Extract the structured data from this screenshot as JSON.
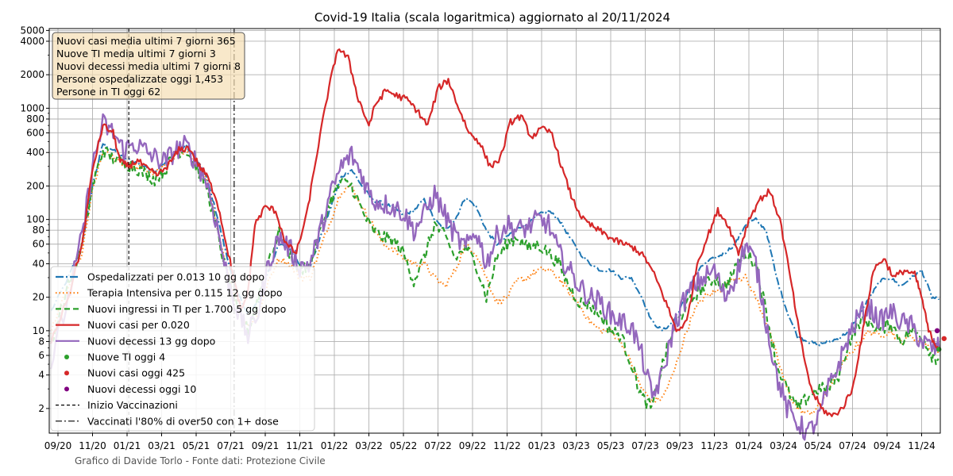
{
  "chart_data": {
    "type": "line",
    "title": "Covid-19 Italia (scala logaritmica) aggiornato al 20/11/2024",
    "scale": "log",
    "ylim": [
      1.2,
      5200
    ],
    "grid": true,
    "x_tick_labels": [
      "09/20",
      "11/20",
      "01/21",
      "03/21",
      "05/21",
      "07/21",
      "09/21",
      "11/21",
      "01/22",
      "03/22",
      "05/22",
      "07/22",
      "09/22",
      "11/22",
      "01/23",
      "03/23",
      "05/23",
      "07/23",
      "09/23",
      "11/23",
      "01/24",
      "03/24",
      "05/24",
      "07/24",
      "09/24",
      "11/24"
    ],
    "y_ticks": [
      {
        "value": 2,
        "label": "2"
      },
      {
        "value": 4,
        "label": "4"
      },
      {
        "value": 6,
        "label": "6"
      },
      {
        "value": 8,
        "label": "8"
      },
      {
        "value": 10,
        "label": "10"
      },
      {
        "value": 20,
        "label": "20"
      },
      {
        "value": 40,
        "label": "40"
      },
      {
        "value": 60,
        "label": "60"
      },
      {
        "value": 80,
        "label": "80"
      },
      {
        "value": 100,
        "label": "100"
      },
      {
        "value": 200,
        "label": "200"
      },
      {
        "value": 400,
        "label": "400"
      },
      {
        "value": 600,
        "label": "600"
      },
      {
        "value": 800,
        "label": "800"
      },
      {
        "value": 1000,
        "label": "1000"
      },
      {
        "value": 2000,
        "label": "2000"
      },
      {
        "value": 4000,
        "label": "4000"
      },
      {
        "value": 5000,
        "label": "5000"
      }
    ],
    "x_range": [
      -0.2,
      25.6
    ],
    "vertical_lines": [
      {
        "x": 2.05,
        "style": "dashed"
      },
      {
        "x": 5.1,
        "style": "dashdot"
      }
    ],
    "info_box": [
      "Nuovi casi media ultimi 7 giorni 365",
      "Nuove TI media ultimi 7 giorni 3",
      "Nuovi decessi media ultimi 7 giorni 8",
      "Persone ospedalizzate oggi 1,453",
      "Persone in TI oggi 62"
    ],
    "legend": [
      {
        "label": "Ospedalizzati per 0.013 10 gg dopo",
        "color": "#1f77b4",
        "kind": "line",
        "dash": "10 3 2 3"
      },
      {
        "label": "Terapia Intensiva per 0.115 12 gg dopo",
        "color": "#ff7f0e",
        "kind": "line",
        "dash": "1.5 3"
      },
      {
        "label": "Nuovi ingressi in TI per 1.700 5 gg dopo",
        "color": "#2ca02c",
        "kind": "line",
        "dash": "7 4"
      },
      {
        "label": "Nuovi casi per 0.020",
        "color": "#d62728",
        "kind": "line",
        "dash": ""
      },
      {
        "label": "Nuovi decessi 13 gg dopo",
        "color": "#9467bd",
        "kind": "line",
        "dash": ""
      },
      {
        "label": "Nuove TI oggi 4",
        "color": "#2ca02c",
        "kind": "dot"
      },
      {
        "label": "Nuovi casi oggi 425",
        "color": "#d62728",
        "kind": "dot"
      },
      {
        "label": "Nuovi decessi oggi 10",
        "color": "#800080",
        "kind": "dot"
      },
      {
        "label": "Inizio Vaccinazioni",
        "color": "#000000",
        "kind": "line",
        "dash": "4 3"
      },
      {
        "label": "Vaccinati l'80% di over50 con 1+ dose",
        "color": "#000000",
        "kind": "line",
        "dash": "8 3 2 3"
      }
    ],
    "series": [
      {
        "name": "Nuovi casi per 0.020",
        "color": "#d62728",
        "width": 2.2,
        "dash": "",
        "jitter": 0.03,
        "x": [
          -0.2,
          0.3,
          0.7,
          1.0,
          1.3,
          1.6,
          1.8,
          2.05,
          2.3,
          2.6,
          2.9,
          3.2,
          3.5,
          3.8,
          4.1,
          4.3,
          4.6,
          4.9,
          5.1,
          5.3,
          5.5,
          5.7,
          6.0,
          6.3,
          6.6,
          6.9,
          7.2,
          7.5,
          7.8,
          8.1,
          8.4,
          8.7,
          9.0,
          9.2,
          9.5,
          9.8,
          10.1,
          10.4,
          10.7,
          11.0,
          11.3,
          11.6,
          11.9,
          12.2,
          12.5,
          12.8,
          13.1,
          13.4,
          13.7,
          14.0,
          14.3,
          14.6,
          14.9,
          15.2,
          15.5,
          15.8,
          16.1,
          16.4,
          16.7,
          17.0,
          17.3,
          17.6,
          17.9,
          18.2,
          18.5,
          18.8,
          19.1,
          19.4,
          19.7,
          20.0,
          20.3,
          20.6,
          20.9,
          21.2,
          21.5,
          21.8,
          22.1,
          22.4,
          22.7,
          23.0,
          23.3,
          23.6,
          23.9,
          24.2,
          24.5,
          24.8,
          25.0,
          25.2,
          25.4,
          25.5
        ],
        "y": [
          8,
          20,
          60,
          280,
          700,
          600,
          330,
          300,
          340,
          280,
          250,
          310,
          420,
          440,
          300,
          250,
          150,
          55,
          28,
          15,
          22,
          90,
          130,
          120,
          60,
          50,
          110,
          400,
          1300,
          3500,
          2800,
          1200,
          700,
          1100,
          1450,
          1300,
          1200,
          950,
          700,
          1500,
          1800,
          1000,
          600,
          500,
          300,
          350,
          750,
          850,
          550,
          650,
          600,
          280,
          150,
          100,
          85,
          75,
          65,
          60,
          55,
          45,
          30,
          18,
          10,
          12,
          40,
          70,
          120,
          90,
          50,
          100,
          150,
          180,
          100,
          30,
          8,
          3,
          2,
          1.7,
          2,
          3,
          10,
          35,
          45,
          30,
          35,
          32,
          20,
          10,
          7.5,
          7
        ]
      },
      {
        "name": "Ospedalizzati per 0.013 10 gg dopo",
        "color": "#1f77b4",
        "width": 2,
        "dash": "10 3 2 3",
        "jitter": 0.015,
        "x": [
          -0.2,
          0.3,
          0.7,
          1.0,
          1.3,
          1.6,
          1.9,
          2.2,
          2.5,
          2.8,
          3.1,
          3.4,
          3.7,
          4.0,
          4.3,
          4.6,
          4.9,
          5.2,
          5.5,
          5.8,
          6.1,
          6.4,
          6.7,
          7.0,
          7.3,
          7.6,
          7.9,
          8.2,
          8.5,
          8.8,
          9.1,
          9.4,
          9.7,
          10.0,
          10.3,
          10.6,
          10.9,
          11.2,
          11.5,
          11.8,
          12.1,
          12.4,
          12.7,
          13.0,
          13.3,
          13.6,
          13.9,
          14.2,
          14.5,
          14.8,
          15.1,
          15.4,
          15.7,
          16.0,
          16.3,
          16.6,
          16.9,
          17.2,
          17.5,
          17.8,
          18.1,
          18.4,
          18.7,
          19.0,
          19.3,
          19.6,
          19.9,
          20.2,
          20.5,
          20.8,
          21.1,
          21.4,
          21.7,
          22.0,
          22.3,
          22.6,
          22.9,
          23.2,
          23.5,
          23.8,
          24.1,
          24.4,
          24.7,
          25.0,
          25.3,
          25.5
        ],
        "y": [
          15,
          30,
          60,
          200,
          480,
          420,
          360,
          330,
          300,
          270,
          320,
          400,
          460,
          350,
          240,
          110,
          45,
          22,
          14,
          18,
          35,
          60,
          55,
          40,
          38,
          70,
          130,
          240,
          280,
          200,
          150,
          140,
          130,
          110,
          120,
          150,
          100,
          80,
          100,
          160,
          130,
          80,
          60,
          70,
          85,
          90,
          110,
          120,
          100,
          70,
          50,
          40,
          35,
          35,
          30,
          30,
          20,
          12,
          10,
          12,
          18,
          30,
          40,
          45,
          50,
          60,
          90,
          100,
          80,
          30,
          15,
          9,
          8,
          7.5,
          8,
          8.5,
          10,
          14,
          20,
          28,
          30,
          25,
          30,
          35,
          20,
          19
        ]
      },
      {
        "name": "Terapia Intensiva per 0.115 12 gg dopo",
        "color": "#ff7f0e",
        "width": 2,
        "dash": "1.5 3",
        "jitter": 0.03,
        "x": [
          -0.2,
          0.3,
          0.7,
          1.0,
          1.3,
          1.6,
          1.9,
          2.2,
          2.5,
          2.8,
          3.1,
          3.4,
          3.7,
          4.0,
          4.3,
          4.6,
          4.9,
          5.2,
          5.5,
          5.8,
          6.1,
          6.4,
          6.7,
          7.0,
          7.3,
          7.6,
          7.9,
          8.2,
          8.5,
          8.8,
          9.1,
          9.4,
          9.7,
          10.0,
          10.3,
          10.6,
          10.9,
          11.2,
          11.5,
          11.8,
          12.1,
          12.4,
          12.7,
          13.0,
          13.3,
          13.6,
          13.9,
          14.2,
          14.5,
          14.8,
          15.1,
          15.4,
          15.7,
          16.0,
          16.3,
          16.6,
          16.9,
          17.2,
          17.5,
          17.8,
          18.1,
          18.4,
          18.7,
          19.0,
          19.3,
          19.6,
          19.9,
          20.2,
          20.5,
          20.8,
          21.1,
          21.4,
          21.7,
          22.0,
          22.3,
          22.6,
          22.9,
          23.2,
          23.5,
          23.8,
          24.1,
          24.4,
          24.7,
          25.0,
          25.3,
          25.5
        ],
        "y": [
          10,
          25,
          50,
          180,
          400,
          360,
          320,
          300,
          280,
          260,
          300,
          380,
          400,
          320,
          220,
          90,
          35,
          17,
          11,
          14,
          28,
          45,
          40,
          30,
          30,
          55,
          100,
          180,
          200,
          130,
          90,
          60,
          55,
          45,
          40,
          40,
          30,
          25,
          35,
          60,
          50,
          30,
          18,
          20,
          28,
          30,
          35,
          35,
          30,
          22,
          17,
          12,
          10,
          10,
          8,
          5,
          3,
          2.3,
          2.5,
          4,
          8,
          15,
          20,
          22,
          25,
          30,
          30,
          20,
          12,
          6,
          3,
          2,
          1.8,
          2,
          3,
          4.5,
          6,
          8,
          10,
          9,
          10,
          8,
          9,
          8,
          7,
          6.5
        ]
      },
      {
        "name": "Nuovi ingressi in TI per 1.700 5 gg dopo",
        "color": "#2ca02c",
        "width": 2.2,
        "dash": "7 4",
        "jitter": 0.06,
        "x": [
          -0.2,
          0.3,
          0.7,
          1.0,
          1.3,
          1.6,
          1.9,
          2.2,
          2.5,
          2.8,
          3.1,
          3.4,
          3.7,
          4.0,
          4.3,
          4.6,
          4.9,
          5.2,
          5.5,
          5.8,
          6.1,
          6.4,
          6.7,
          7.0,
          7.3,
          7.6,
          7.9,
          8.2,
          8.5,
          8.8,
          9.1,
          9.4,
          9.7,
          10.0,
          10.3,
          10.6,
          10.9,
          11.2,
          11.5,
          11.8,
          12.1,
          12.4,
          12.7,
          13.0,
          13.3,
          13.6,
          13.9,
          14.2,
          14.5,
          14.8,
          15.1,
          15.4,
          15.7,
          16.0,
          16.3,
          16.6,
          16.9,
          17.2,
          17.5,
          17.8,
          18.1,
          18.4,
          18.7,
          19.0,
          19.3,
          19.6,
          19.9,
          20.2,
          20.5,
          20.8,
          21.1,
          21.4,
          21.7,
          22.0,
          22.3,
          22.6,
          22.9,
          23.2,
          23.5,
          23.8,
          24.1,
          24.4,
          24.7,
          25.0,
          25.3,
          25.5
        ],
        "y": [
          8,
          25,
          60,
          200,
          420,
          350,
          320,
          300,
          260,
          230,
          280,
          400,
          430,
          300,
          200,
          80,
          30,
          15,
          10,
          20,
          45,
          75,
          50,
          35,
          40,
          80,
          150,
          220,
          200,
          120,
          80,
          70,
          65,
          50,
          28,
          45,
          90,
          70,
          45,
          55,
          40,
          20,
          45,
          60,
          70,
          55,
          60,
          50,
          40,
          25,
          18,
          17,
          14,
          10,
          9,
          5,
          2.5,
          2,
          5,
          10,
          15,
          20,
          25,
          30,
          25,
          35,
          50,
          40,
          15,
          5,
          3,
          2,
          2.5,
          3,
          3,
          4,
          8,
          12,
          12,
          10,
          12,
          8,
          10,
          9,
          6,
          5.5
        ]
      },
      {
        "name": "Nuovi decessi 13 gg dopo",
        "color": "#9467bd",
        "width": 2.4,
        "dash": "",
        "jitter": 0.1,
        "x": [
          -0.2,
          0.3,
          0.7,
          1.0,
          1.3,
          1.6,
          1.9,
          2.2,
          2.5,
          2.8,
          3.1,
          3.4,
          3.7,
          4.0,
          4.3,
          4.6,
          4.9,
          5.2,
          5.5,
          5.8,
          6.1,
          6.4,
          6.7,
          7.0,
          7.3,
          7.6,
          7.9,
          8.2,
          8.5,
          8.8,
          9.1,
          9.4,
          9.7,
          10.0,
          10.3,
          10.6,
          10.9,
          11.2,
          11.5,
          11.8,
          12.1,
          12.4,
          12.7,
          13.0,
          13.3,
          13.6,
          13.9,
          14.2,
          14.5,
          14.8,
          15.1,
          15.4,
          15.7,
          16.0,
          16.3,
          16.6,
          16.9,
          17.2,
          17.5,
          17.8,
          18.1,
          18.4,
          18.7,
          19.0,
          19.3,
          19.6,
          19.9,
          20.2,
          20.5,
          20.8,
          21.1,
          21.4,
          21.7,
          22.0,
          22.3,
          22.6,
          22.9,
          23.2,
          23.5,
          23.8,
          24.1,
          24.4,
          24.7,
          25.0,
          25.3,
          25.5
        ],
        "y": [
          5,
          20,
          70,
          300,
          720,
          600,
          420,
          480,
          420,
          360,
          330,
          420,
          460,
          330,
          220,
          90,
          30,
          15,
          9,
          15,
          40,
          70,
          55,
          38,
          40,
          80,
          170,
          300,
          380,
          250,
          150,
          140,
          130,
          115,
          80,
          110,
          170,
          110,
          70,
          55,
          80,
          40,
          70,
          90,
          80,
          85,
          100,
          90,
          50,
          35,
          25,
          20,
          18,
          14,
          12,
          11,
          6,
          2.5,
          4,
          10,
          18,
          25,
          30,
          35,
          20,
          30,
          60,
          40,
          12,
          4,
          2,
          1.5,
          1.2,
          1.6,
          3,
          5,
          9,
          14,
          16,
          12,
          15,
          12,
          11,
          8,
          7,
          7
        ]
      }
    ],
    "today_points": [
      {
        "label": "Nuovi casi oggi 425",
        "color": "#d62728",
        "x": 25.65,
        "y": 8.5
      },
      {
        "label": "Nuove TI oggi 4",
        "color": "#2ca02c",
        "x": 25.5,
        "y": 6.8
      },
      {
        "label": "Nuovi decessi oggi 10",
        "color": "#800080",
        "x": 25.45,
        "y": 10
      }
    ],
    "credit": "Grafico di Davide Torlo - Fonte dati: Protezione Civile"
  }
}
